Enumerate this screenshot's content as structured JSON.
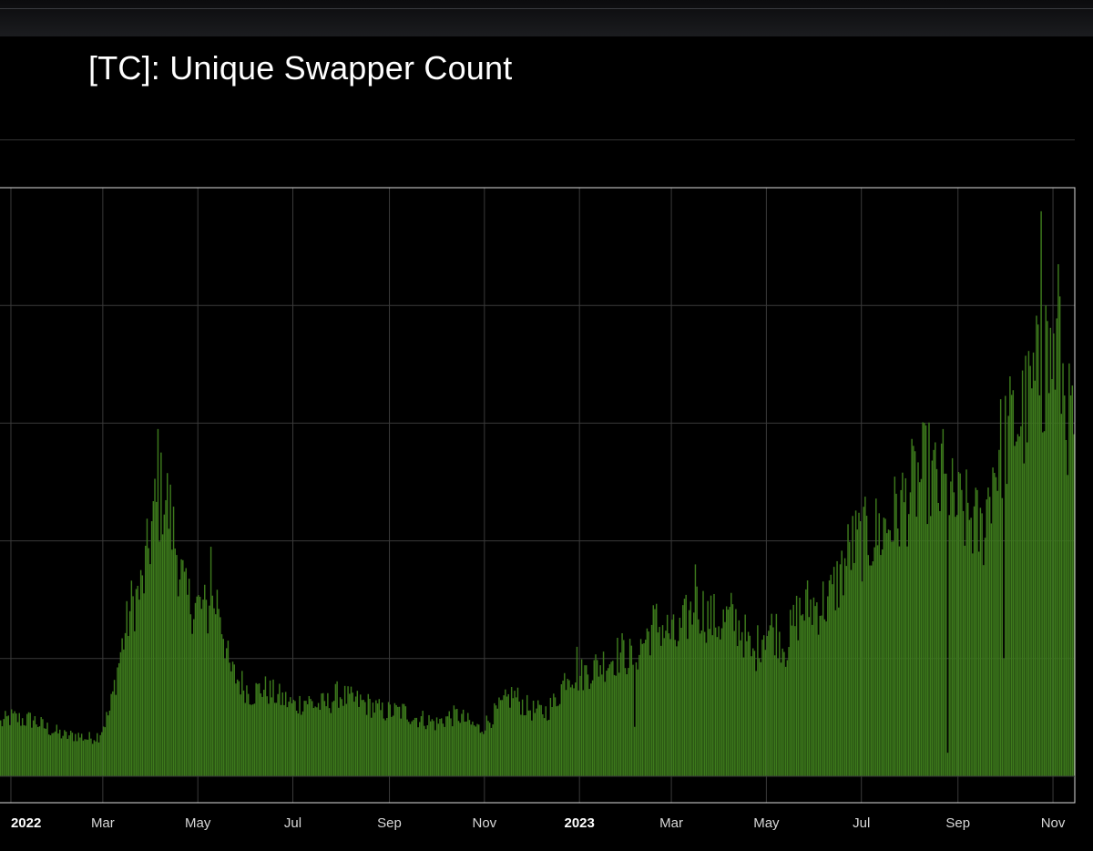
{
  "page": {
    "title": "[TC]: Unique Swapper Count",
    "colors": {
      "background": "#000000",
      "bar": "#3d7a1c",
      "grid": "#3a3a3a",
      "frame": "#dddddd"
    }
  },
  "chart_data": {
    "type": "bar",
    "title": "[TC]: Unique Swapper Count",
    "xlabel": "",
    "ylabel": "",
    "grid": true,
    "legend": "none",
    "x_tick_labels": [
      "2022",
      "Mar",
      "May",
      "Jul",
      "Sep",
      "Nov",
      "2023",
      "Mar",
      "May",
      "Jul",
      "Sep",
      "Nov"
    ],
    "x_tick_dates": [
      "2022-01-01",
      "2022-03-01",
      "2022-05-01",
      "2022-07-01",
      "2022-09-01",
      "2022-11-01",
      "2023-01-01",
      "2023-03-01",
      "2023-05-01",
      "2023-07-01",
      "2023-09-01",
      "2023-11-01"
    ],
    "bold_ticks": [
      "2022",
      "2023"
    ],
    "x_range": [
      "2021-12-25",
      "2023-11-15"
    ],
    "y_range": [
      0,
      50
    ],
    "y_gridlines": [
      0,
      10,
      20,
      30,
      40,
      50
    ],
    "y_unit_note": "",
    "series": [
      {
        "name": "",
        "color": "#3d7a1c",
        "points": [
          [
            "2021-12-25",
            4.5
          ],
          [
            "2022-01-01",
            5.0
          ],
          [
            "2022-01-08",
            4.8
          ],
          [
            "2022-01-15",
            4.8
          ],
          [
            "2022-01-22",
            4.2
          ],
          [
            "2022-01-29",
            3.8
          ],
          [
            "2022-02-05",
            3.4
          ],
          [
            "2022-02-12",
            3.5
          ],
          [
            "2022-02-19",
            3.2
          ],
          [
            "2022-02-26",
            3.5
          ],
          [
            "2022-03-05",
            5.5
          ],
          [
            "2022-03-12",
            10.5
          ],
          [
            "2022-03-19",
            14.5
          ],
          [
            "2022-03-26",
            16.0
          ],
          [
            "2022-04-02",
            22.0
          ],
          [
            "2022-04-09",
            24.5
          ],
          [
            "2022-04-16",
            20.0
          ],
          [
            "2022-04-23",
            15.0
          ],
          [
            "2022-04-30",
            14.5
          ],
          [
            "2022-05-07",
            14.0
          ],
          [
            "2022-05-14",
            15.0
          ],
          [
            "2022-05-21",
            9.0
          ],
          [
            "2022-05-28",
            8.0
          ],
          [
            "2022-06-04",
            7.0
          ],
          [
            "2022-06-11",
            7.5
          ],
          [
            "2022-06-18",
            7.0
          ],
          [
            "2022-06-25",
            6.5
          ],
          [
            "2022-07-02",
            6.0
          ],
          [
            "2022-07-09",
            6.5
          ],
          [
            "2022-07-16",
            6.0
          ],
          [
            "2022-07-23",
            6.2
          ],
          [
            "2022-07-30",
            7.0
          ],
          [
            "2022-08-06",
            6.5
          ],
          [
            "2022-08-13",
            6.3
          ],
          [
            "2022-08-20",
            6.0
          ],
          [
            "2022-08-27",
            5.5
          ],
          [
            "2022-09-03",
            5.5
          ],
          [
            "2022-09-10",
            5.5
          ],
          [
            "2022-09-17",
            5.0
          ],
          [
            "2022-09-24",
            4.8
          ],
          [
            "2022-10-01",
            4.5
          ],
          [
            "2022-10-08",
            5.0
          ],
          [
            "2022-10-15",
            5.2
          ],
          [
            "2022-10-22",
            4.5
          ],
          [
            "2022-10-29",
            4.0
          ],
          [
            "2022-11-05",
            5.0
          ],
          [
            "2022-11-12",
            6.0
          ],
          [
            "2022-11-19",
            7.0
          ],
          [
            "2022-11-26",
            6.0
          ],
          [
            "2022-12-03",
            5.5
          ],
          [
            "2022-12-10",
            5.5
          ],
          [
            "2022-12-17",
            6.5
          ],
          [
            "2022-12-24",
            9.0
          ],
          [
            "2022-12-31",
            8.5
          ],
          [
            "2023-01-07",
            9.0
          ],
          [
            "2023-01-14",
            9.5
          ],
          [
            "2023-01-21",
            10.0
          ],
          [
            "2023-01-28",
            10.5
          ],
          [
            "2023-02-04",
            10.0
          ],
          [
            "2023-02-11",
            11.5
          ],
          [
            "2023-02-18",
            13.0
          ],
          [
            "2023-02-25",
            12.5
          ],
          [
            "2023-03-04",
            11.5
          ],
          [
            "2023-03-11",
            13.5
          ],
          [
            "2023-03-18",
            14.5
          ],
          [
            "2023-03-25",
            13.5
          ],
          [
            "2023-04-01",
            13.0
          ],
          [
            "2023-04-08",
            13.5
          ],
          [
            "2023-04-15",
            12.5
          ],
          [
            "2023-04-22",
            10.0
          ],
          [
            "2023-04-29",
            12.5
          ],
          [
            "2023-05-06",
            12.5
          ],
          [
            "2023-05-13",
            11.0
          ],
          [
            "2023-05-20",
            13.5
          ],
          [
            "2023-05-27",
            14.5
          ],
          [
            "2023-06-03",
            14.5
          ],
          [
            "2023-06-10",
            15.0
          ],
          [
            "2023-06-17",
            17.0
          ],
          [
            "2023-06-24",
            19.5
          ],
          [
            "2023-07-01",
            20.0
          ],
          [
            "2023-07-08",
            20.5
          ],
          [
            "2023-07-15",
            21.0
          ],
          [
            "2023-07-22",
            22.0
          ],
          [
            "2023-07-29",
            23.5
          ],
          [
            "2023-08-05",
            25.0
          ],
          [
            "2023-08-12",
            26.0
          ],
          [
            "2023-08-19",
            24.5
          ],
          [
            "2023-08-26",
            23.5
          ],
          [
            "2023-09-02",
            22.5
          ],
          [
            "2023-09-09",
            22.0
          ],
          [
            "2023-09-16",
            20.5
          ],
          [
            "2023-09-23",
            26.0
          ],
          [
            "2023-09-30",
            28.5
          ],
          [
            "2023-10-07",
            30.0
          ],
          [
            "2023-10-14",
            31.0
          ],
          [
            "2023-10-21",
            33.5
          ],
          [
            "2023-10-28",
            35.0
          ],
          [
            "2023-11-04",
            36.0
          ],
          [
            "2023-11-11",
            30.0
          ]
        ],
        "spikes": [
          [
            "2022-04-05",
            29.5
          ],
          [
            "2022-05-09",
            19.5
          ],
          [
            "2022-12-30",
            11.0
          ],
          [
            "2023-02-05",
            4.2
          ],
          [
            "2023-03-16",
            18.0
          ],
          [
            "2023-08-22",
            29.5
          ],
          [
            "2023-08-25",
            2.0
          ],
          [
            "2023-09-30",
            10.0
          ],
          [
            "2023-10-24",
            48.0
          ],
          [
            "2023-10-27",
            40.0
          ],
          [
            "2023-11-04",
            43.5
          ]
        ]
      }
    ]
  }
}
